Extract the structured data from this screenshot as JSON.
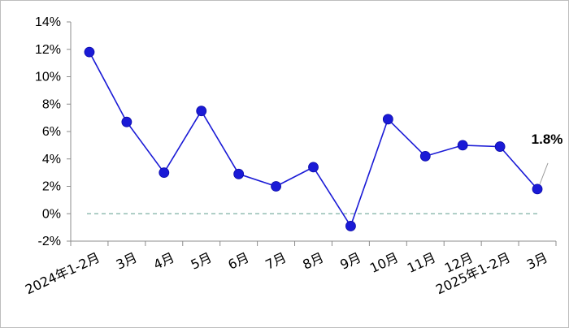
{
  "chart_data": {
    "type": "line",
    "title": "",
    "xlabel": "",
    "ylabel": "",
    "categories": [
      "2024年1-2月",
      "3月",
      "4月",
      "5月",
      "6月",
      "7月",
      "8月",
      "9月",
      "10月",
      "11月",
      "12月",
      "2025年1-2月",
      "3月"
    ],
    "series": [
      {
        "values": [
          11.8,
          6.7,
          3.0,
          7.5,
          2.9,
          2.0,
          3.4,
          -0.9,
          6.9,
          4.2,
          5.0,
          4.9,
          1.8
        ],
        "color": "#1a1ad6"
      }
    ],
    "yticks": [
      "-2%",
      "0%",
      "2%",
      "4%",
      "6%",
      "8%",
      "10%",
      "12%",
      "14%"
    ],
    "ylim": [
      -2,
      14
    ],
    "reference_line": {
      "value": 0,
      "color": "#7fb0a4",
      "style": "dashed"
    },
    "annotations": [
      {
        "category_index": 12,
        "text": "1.8%"
      }
    ],
    "grid": false,
    "legend": "none"
  }
}
